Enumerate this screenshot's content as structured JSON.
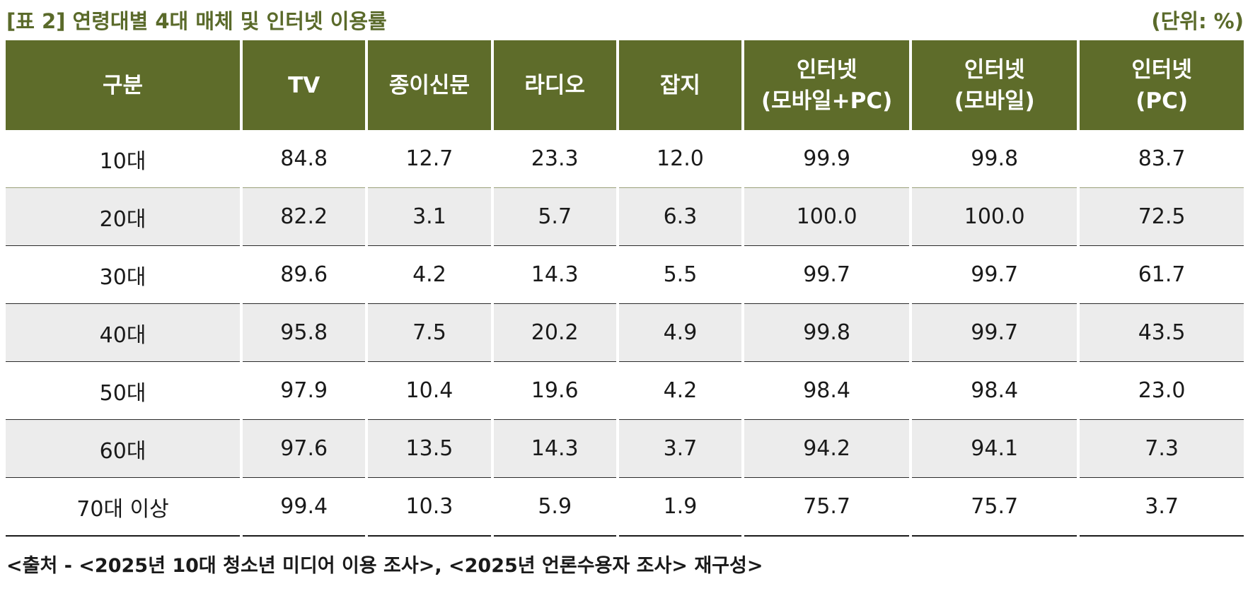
{
  "title": "[표 2] 연령대별 4대 매체 및 인터넷 이용률",
  "unit": "(단위: %)",
  "table": {
    "headers": [
      {
        "line1": "구분",
        "line2": ""
      },
      {
        "line1": "TV",
        "line2": ""
      },
      {
        "line1": "종이신문",
        "line2": ""
      },
      {
        "line1": "라디오",
        "line2": ""
      },
      {
        "line1": "잡지",
        "line2": ""
      },
      {
        "line1": "인터넷",
        "line2": "(모바일+PC)"
      },
      {
        "line1": "인터넷",
        "line2": "(모바일)"
      },
      {
        "line1": "인터넷",
        "line2": "(PC)"
      }
    ],
    "rows": [
      [
        "10대",
        "84.8",
        "12.7",
        "23.3",
        "12.0",
        "99.9",
        "99.8",
        "83.7"
      ],
      [
        "20대",
        "82.2",
        "3.1",
        "5.7",
        "6.3",
        "100.0",
        "100.0",
        "72.5"
      ],
      [
        "30대",
        "89.6",
        "4.2",
        "14.3",
        "5.5",
        "99.7",
        "99.7",
        "61.7"
      ],
      [
        "40대",
        "95.8",
        "7.5",
        "20.2",
        "4.9",
        "99.8",
        "99.7",
        "43.5"
      ],
      [
        "50대",
        "97.9",
        "10.4",
        "19.6",
        "4.2",
        "98.4",
        "98.4",
        "23.0"
      ],
      [
        "60대",
        "97.6",
        "13.5",
        "14.3",
        "3.7",
        "94.2",
        "94.1",
        "7.3"
      ],
      [
        "70대 이상",
        "99.4",
        "10.3",
        "5.9",
        "1.9",
        "75.7",
        "75.7",
        "3.7"
      ]
    ]
  },
  "source": "<출처 - <2025년 10대 청소년 미디어 이용 조사>, <2025년 언론수용자 조사> 재구성>",
  "colors": {
    "header_bg": "#5e6c2a",
    "title_text": "#5a6a2a",
    "stripe_bg": "#ececec"
  }
}
